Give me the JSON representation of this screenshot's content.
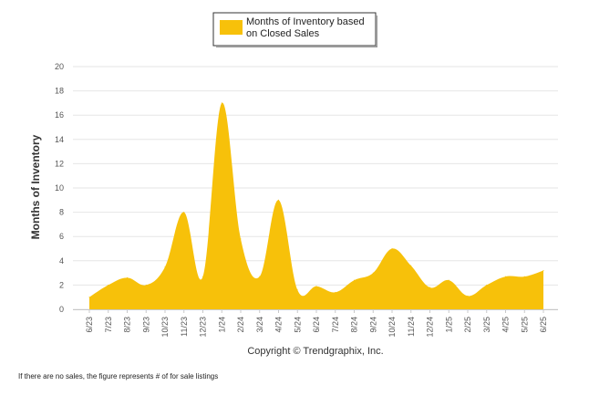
{
  "chart_data": {
    "type": "area",
    "legend": [
      "Months of Inventory based",
      "on Closed Sales"
    ],
    "legend_position": "top-center",
    "ylabel": "Months of Inventory",
    "ylim": [
      0,
      20
    ],
    "yticks": [
      0,
      2,
      4,
      6,
      8,
      10,
      12,
      14,
      16,
      18,
      20
    ],
    "grid": true,
    "categories": [
      "6/23",
      "7/23",
      "8/23",
      "9/23",
      "10/23",
      "11/23",
      "12/23",
      "1/24",
      "2/24",
      "3/24",
      "4/24",
      "5/24",
      "6/24",
      "7/24",
      "8/24",
      "9/24",
      "10/24",
      "11/24",
      "12/24",
      "1/25",
      "2/25",
      "3/25",
      "4/25",
      "5/25",
      "6/25"
    ],
    "series": [
      {
        "name": "Months of Inventory based on Closed Sales",
        "color": "#F7C10A",
        "values": [
          1.0,
          2.0,
          2.6,
          2.0,
          3.5,
          8.0,
          2.7,
          17.0,
          5.8,
          2.7,
          9.0,
          1.6,
          1.9,
          1.4,
          2.4,
          3.0,
          5.0,
          3.6,
          1.8,
          2.4,
          1.1,
          2.0,
          2.7,
          2.7,
          3.2
        ]
      }
    ],
    "annotation": "Copyright © Trendgraphix, Inc."
  },
  "footnote": "If there are no sales, the figure represents # of for sale listings"
}
